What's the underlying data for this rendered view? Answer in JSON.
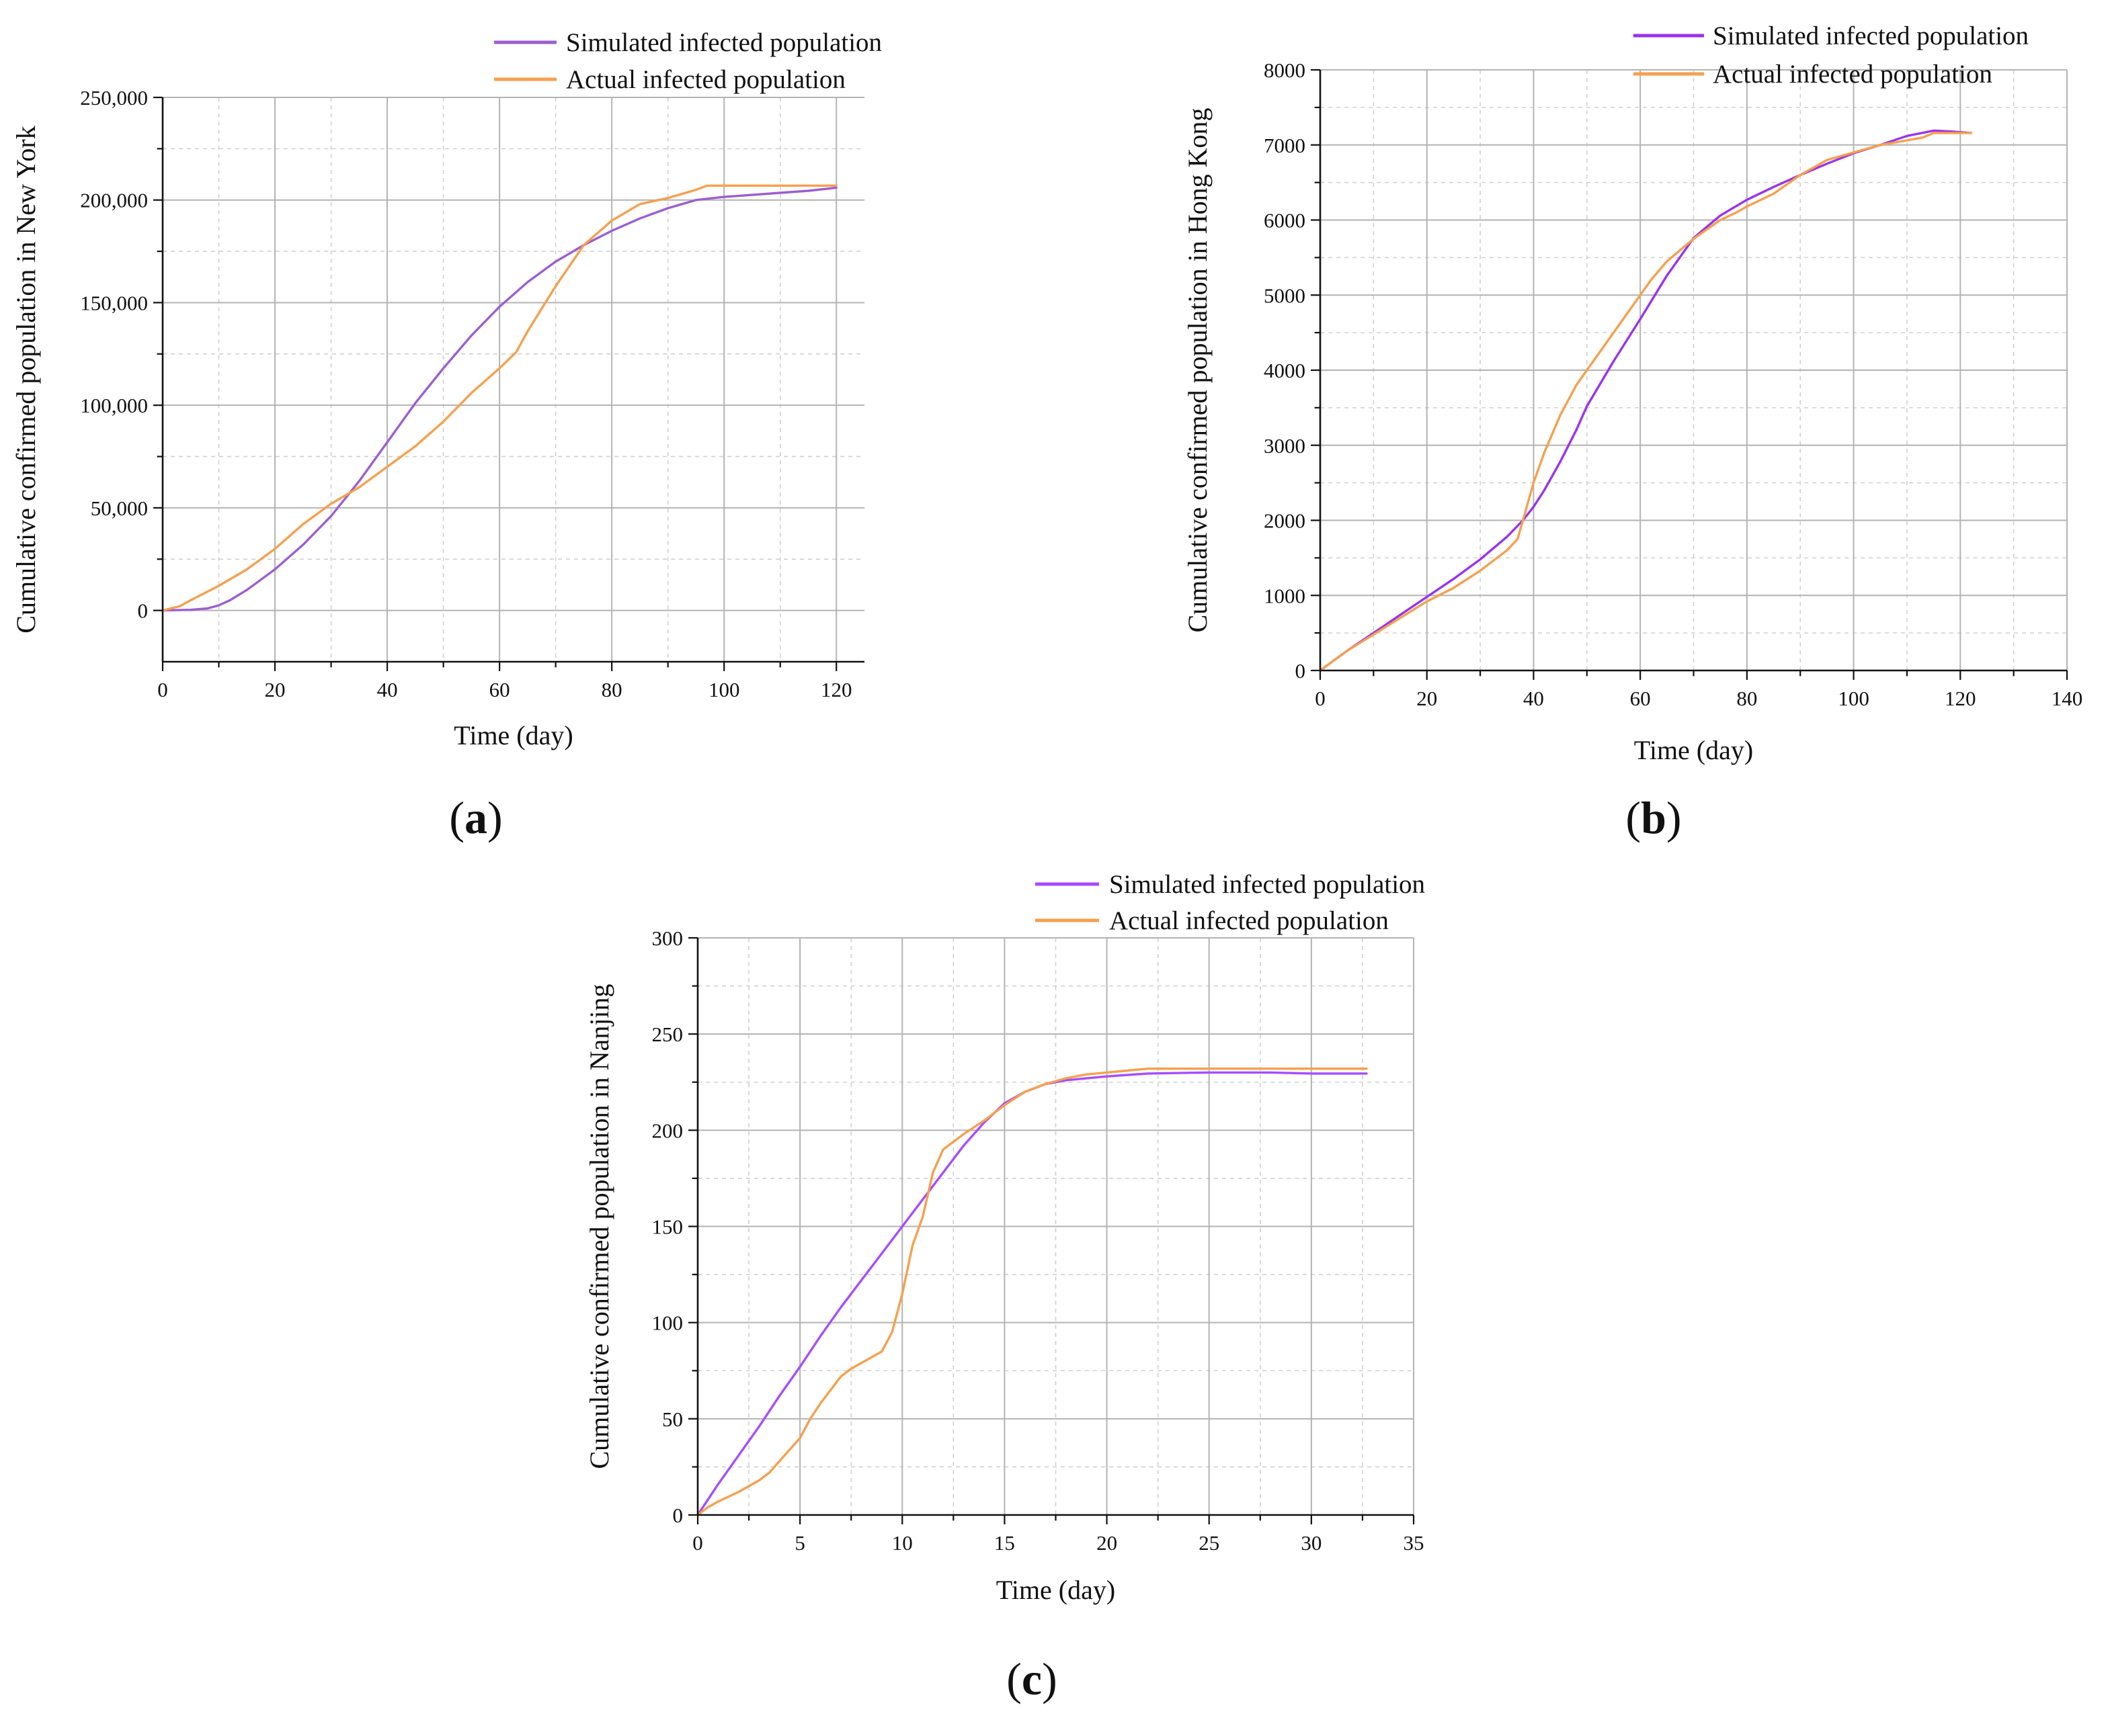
{
  "chart_data": [
    {
      "type": "line",
      "panel_label": "a",
      "title": "",
      "xlabel": "Time (day)",
      "ylabel": "Cumulative confirmed population in New York",
      "xlim": [
        0,
        125
      ],
      "ylim": [
        -25000,
        250000
      ],
      "xticks": [
        0,
        20,
        40,
        60,
        80,
        100,
        120
      ],
      "yticks": [
        0,
        50000,
        100000,
        150000,
        200000,
        250000
      ],
      "ytick_labels": [
        "0",
        "50,000",
        "100,000",
        "150,000",
        "200,000",
        "250,000"
      ],
      "legend_position": "top",
      "series": [
        {
          "name": "Simulated infected population",
          "color": "#9a5fd0",
          "x": [
            0,
            5,
            8,
            10,
            12,
            15,
            20,
            25,
            30,
            35,
            40,
            45,
            50,
            55,
            60,
            65,
            70,
            75,
            80,
            85,
            90,
            95,
            100,
            105,
            110,
            115,
            120
          ],
          "y": [
            0,
            300,
            1000,
            2500,
            5000,
            10000,
            20000,
            32000,
            46000,
            63000,
            82000,
            101000,
            118000,
            134000,
            148000,
            160000,
            170000,
            178000,
            185000,
            191000,
            196000,
            200000,
            201500,
            202500,
            203500,
            204500,
            206000
          ]
        },
        {
          "name": "Actual infected population",
          "color": "#f5a04e",
          "x": [
            0,
            3,
            5,
            10,
            15,
            20,
            25,
            30,
            35,
            40,
            45,
            50,
            55,
            60,
            63,
            65,
            70,
            75,
            80,
            85,
            90,
            95,
            97,
            100,
            105,
            110,
            115,
            120
          ],
          "y": [
            0,
            2000,
            5000,
            12000,
            20000,
            30000,
            42000,
            52000,
            60000,
            70000,
            80000,
            92000,
            106000,
            118000,
            126000,
            136000,
            158000,
            178000,
            190000,
            198000,
            201000,
            205000,
            207000,
            207000,
            207000,
            207000,
            207000,
            207000
          ]
        }
      ]
    },
    {
      "type": "line",
      "panel_label": "b",
      "title": "",
      "xlabel": "Time (day)",
      "ylabel": "Cumulative confirmed population in Hong Kong",
      "xlim": [
        0,
        140
      ],
      "ylim": [
        0,
        8000
      ],
      "xticks": [
        0,
        20,
        40,
        60,
        80,
        100,
        120,
        140
      ],
      "yticks": [
        0,
        1000,
        2000,
        3000,
        4000,
        5000,
        6000,
        7000,
        8000
      ],
      "ytick_labels": [
        "0",
        "1000",
        "2000",
        "3000",
        "4000",
        "5000",
        "6000",
        "7000",
        "8000"
      ],
      "legend_position": "top-right",
      "series": [
        {
          "name": "Simulated infected population",
          "color": "#9933ee",
          "x": [
            0,
            5,
            10,
            15,
            20,
            25,
            30,
            35,
            38,
            40,
            42,
            45,
            48,
            50,
            55,
            60,
            65,
            70,
            75,
            80,
            85,
            90,
            95,
            100,
            105,
            110,
            115,
            118,
            122
          ],
          "y": [
            0,
            260,
            500,
            740,
            980,
            1220,
            1480,
            1780,
            2000,
            2180,
            2400,
            2780,
            3200,
            3520,
            4120,
            4680,
            5260,
            5760,
            6060,
            6270,
            6440,
            6600,
            6750,
            6890,
            7000,
            7120,
            7190,
            7180,
            7160
          ]
        },
        {
          "name": "Actual infected population",
          "color": "#f5a04e",
          "x": [
            0,
            5,
            10,
            15,
            20,
            25,
            30,
            35,
            37,
            38,
            40,
            42,
            45,
            48,
            50,
            55,
            60,
            62,
            65,
            70,
            75,
            78,
            80,
            85,
            90,
            95,
            100,
            105,
            110,
            113,
            115,
            122
          ],
          "y": [
            0,
            260,
            480,
            700,
            920,
            1100,
            1330,
            1600,
            1750,
            2000,
            2500,
            2900,
            3400,
            3800,
            4000,
            4500,
            5000,
            5200,
            5450,
            5750,
            6000,
            6100,
            6180,
            6350,
            6600,
            6800,
            6900,
            7000,
            7060,
            7100,
            7160,
            7160
          ]
        }
      ]
    },
    {
      "type": "line",
      "panel_label": "c",
      "title": "",
      "xlabel": "Time (day)",
      "ylabel": "Cumulative confirmed population in Nanjing",
      "xlim": [
        0,
        35
      ],
      "ylim": [
        0,
        300
      ],
      "xticks": [
        0,
        5,
        10,
        15,
        20,
        25,
        30,
        35
      ],
      "yticks": [
        0,
        50,
        100,
        150,
        200,
        250,
        300
      ],
      "ytick_labels": [
        "0",
        "50",
        "100",
        "150",
        "200",
        "250",
        "300"
      ],
      "legend_position": "top",
      "series": [
        {
          "name": "Simulated infected population",
          "color": "#a64dff",
          "x": [
            0,
            1,
            2,
            3,
            4,
            5,
            6,
            7,
            8,
            9,
            10,
            11,
            12,
            13,
            14,
            15,
            16,
            17,
            18,
            20,
            22,
            25,
            28,
            30,
            32.7
          ],
          "y": [
            0,
            16,
            31,
            46,
            62,
            77,
            93,
            108,
            122,
            136,
            150,
            164,
            178,
            192,
            204,
            214,
            220,
            224,
            226,
            228,
            229.5,
            230,
            230,
            229.5,
            229.5
          ]
        },
        {
          "name": "Actual infected population",
          "color": "#f5a04e",
          "x": [
            0,
            0.5,
            1,
            2,
            3,
            3.5,
            4,
            5,
            5.5,
            6,
            7,
            7.5,
            8,
            9,
            9.5,
            10,
            10.5,
            11,
            11.5,
            12,
            13,
            14,
            15,
            16,
            17,
            18,
            19,
            20,
            22,
            25,
            28,
            30,
            32.7
          ],
          "y": [
            0,
            4,
            7,
            12,
            18,
            22,
            28,
            40,
            50,
            58,
            72,
            76,
            79,
            85,
            95,
            115,
            140,
            155,
            178,
            190,
            198,
            205,
            213,
            220,
            224,
            227,
            229,
            230,
            232,
            232,
            232,
            232,
            232
          ]
        }
      ]
    }
  ]
}
